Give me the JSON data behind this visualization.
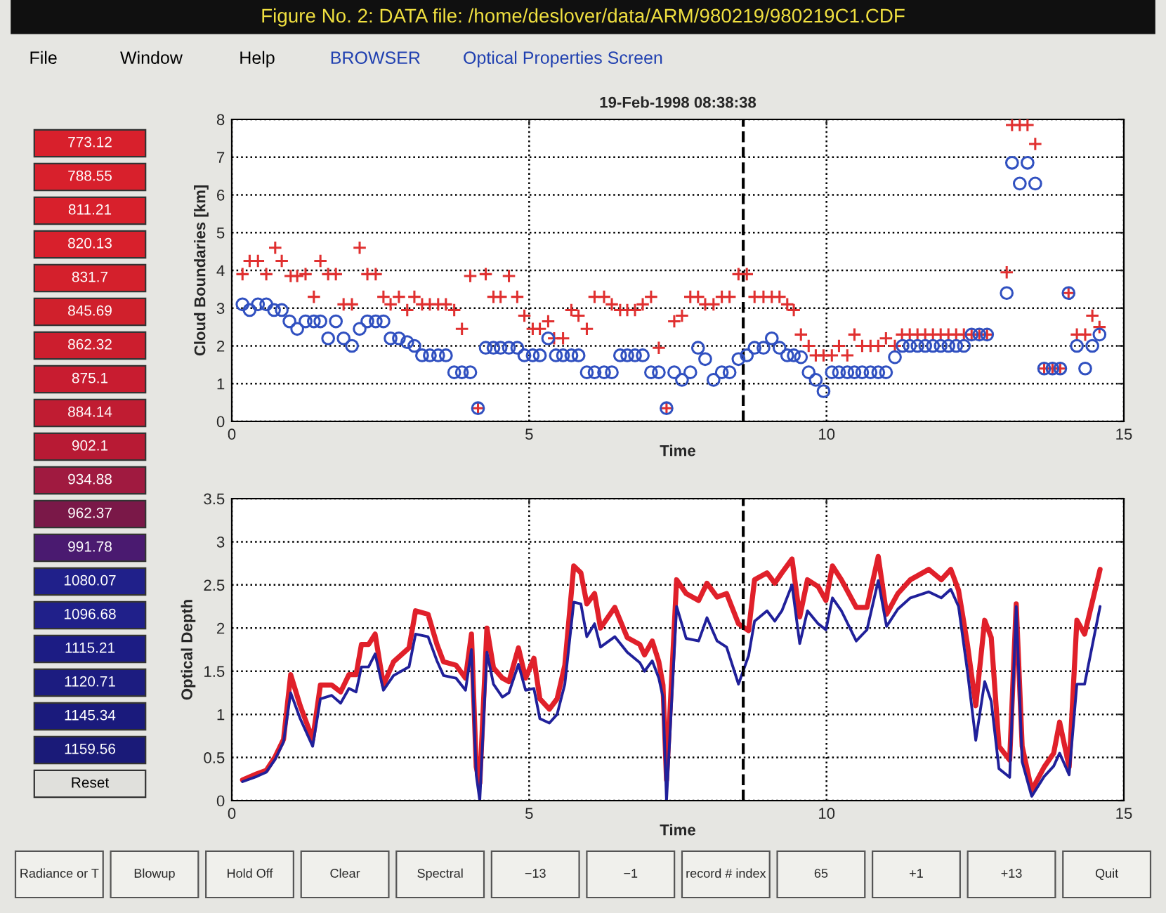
{
  "chart_data": [
    {
      "type": "other",
      "title": "Figure No. 2: DATA file: /home/deslover/data/ARM/980219/980219C1.CDF",
      "annotations": [
        "File",
        "Window",
        "Help",
        "BROWSER",
        "Optical Properties Screen"
      ]
    },
    {
      "type": "other",
      "annotations": [
        "773.12",
        "788.55",
        "811.21",
        "820.13",
        "831.7",
        "845.69",
        "862.32",
        "875.1",
        "884.14",
        "902.1",
        "934.88",
        "962.37",
        "991.78",
        "1080.07",
        "1096.68",
        "1115.21",
        "1120.71",
        "1145.34",
        "1159.56",
        "Reset"
      ],
      "colors": [
        "#d8202c",
        "#d8202c",
        "#d8202c",
        "#d8202c",
        "#d4202c",
        "#d0202c",
        "#cc1e2e",
        "#c81c30",
        "#c01c32",
        "#b81a34",
        "#a01a40",
        "#7a1848",
        "#4a1a70",
        "#20208a",
        "#20208a",
        "#1c1c84",
        "#1c1c80",
        "#1a1a7c",
        "#1a1a78",
        "#e0e0dc"
      ]
    },
    {
      "type": "scatter",
      "title": "19-Feb-1998 08:38:38",
      "xlabel": "Time",
      "ylabel": "Cloud Boundaries [km]",
      "xlim": [
        0,
        15
      ],
      "ylim": [
        0,
        8
      ],
      "xticks": [
        0,
        5,
        10,
        15
      ],
      "yticks": [
        0,
        1,
        2,
        3,
        4,
        5,
        6,
        7,
        8
      ],
      "grid": true,
      "ref_lines": [
        {
          "axis": "x",
          "value": 8.6,
          "line_style": "dashed",
          "color": "#000000"
        }
      ],
      "series": [
        {
          "color": "#e03030",
          "marker": "cross",
          "x": [
            0.18,
            0.3,
            0.44,
            0.58,
            0.73,
            0.84,
            0.99,
            1.1,
            1.24,
            1.38,
            1.49,
            1.62,
            1.75,
            1.88,
            2.02,
            2.15,
            2.28,
            2.42,
            2.55,
            2.67,
            2.81,
            2.95,
            3.07,
            3.2,
            3.33,
            3.47,
            3.6,
            3.74,
            3.87,
            4.01,
            4.14,
            4.27,
            4.4,
            4.52,
            4.66,
            4.8,
            4.92,
            5.06,
            5.18,
            5.32,
            5.42,
            5.57,
            5.71,
            5.83,
            5.97,
            6.1,
            6.26,
            6.39,
            6.53,
            6.65,
            6.78,
            6.91,
            7.05,
            7.18,
            7.31,
            7.44,
            7.57,
            7.71,
            7.84,
            7.96,
            8.1,
            8.24,
            8.37,
            8.52,
            8.66,
            8.79,
            8.94,
            9.08,
            9.21,
            9.34,
            9.45,
            9.57,
            9.7,
            9.82,
            9.95,
            10.09,
            10.21,
            10.35,
            10.47,
            10.6,
            10.74,
            10.87,
            11.0,
            11.15,
            11.27,
            11.4,
            11.53,
            11.66,
            11.79,
            11.92,
            12.05,
            12.18,
            12.31,
            12.44,
            12.57,
            12.7,
            13.03,
            13.12,
            13.25,
            13.38,
            13.51,
            13.66,
            13.8,
            13.93,
            14.07,
            14.21,
            14.35,
            14.47,
            14.59
          ],
          "values": [
            3.9,
            4.25,
            4.25,
            3.9,
            4.6,
            4.25,
            3.85,
            3.85,
            3.9,
            3.3,
            4.25,
            3.9,
            3.9,
            3.1,
            3.1,
            4.6,
            3.9,
            3.9,
            3.3,
            3.1,
            3.3,
            2.95,
            3.3,
            3.1,
            3.1,
            3.1,
            3.1,
            2.95,
            2.45,
            3.85,
            0.35,
            3.9,
            3.3,
            3.3,
            3.85,
            3.3,
            2.8,
            2.45,
            2.45,
            2.65,
            2.2,
            2.2,
            2.95,
            2.8,
            2.45,
            3.3,
            3.3,
            3.1,
            2.95,
            2.95,
            2.95,
            3.1,
            3.3,
            1.95,
            0.35,
            2.65,
            2.8,
            3.3,
            3.3,
            3.1,
            3.1,
            3.3,
            3.3,
            3.9,
            3.9,
            3.3,
            3.3,
            3.3,
            3.3,
            3.1,
            2.95,
            2.3,
            2.0,
            1.75,
            1.75,
            1.75,
            2.0,
            1.75,
            2.3,
            2.0,
            2.0,
            2.0,
            2.2,
            2.0,
            2.3,
            2.3,
            2.3,
            2.3,
            2.3,
            2.3,
            2.3,
            2.3,
            2.3,
            2.3,
            2.3,
            2.3,
            3.95,
            7.85,
            7.85,
            7.85,
            7.35,
            1.4,
            1.4,
            1.4,
            3.4,
            2.3,
            2.3,
            2.8,
            2.5
          ]
        },
        {
          "color": "#3050c0",
          "marker": "circle",
          "x": [
            0.18,
            0.3,
            0.44,
            0.58,
            0.71,
            0.84,
            0.97,
            1.1,
            1.24,
            1.38,
            1.49,
            1.62,
            1.75,
            1.88,
            2.02,
            2.15,
            2.28,
            2.42,
            2.55,
            2.67,
            2.81,
            2.95,
            3.07,
            3.2,
            3.33,
            3.47,
            3.6,
            3.74,
            3.87,
            4.01,
            4.14,
            4.27,
            4.4,
            4.52,
            4.66,
            4.8,
            4.92,
            5.06,
            5.18,
            5.32,
            5.45,
            5.57,
            5.71,
            5.83,
            5.97,
            6.1,
            6.26,
            6.39,
            6.53,
            6.65,
            6.78,
            6.91,
            7.05,
            7.18,
            7.31,
            7.44,
            7.57,
            7.71,
            7.84,
            7.96,
            8.1,
            8.24,
            8.37,
            8.52,
            8.66,
            8.79,
            8.94,
            9.08,
            9.21,
            9.34,
            9.45,
            9.57,
            9.7,
            9.82,
            9.95,
            10.09,
            10.21,
            10.35,
            10.47,
            10.6,
            10.74,
            10.87,
            11.0,
            11.15,
            11.28,
            11.4,
            11.53,
            11.66,
            11.79,
            11.92,
            12.05,
            12.18,
            12.31,
            12.44,
            12.57,
            12.7,
            13.03,
            13.12,
            13.25,
            13.38,
            13.51,
            13.66,
            13.8,
            13.93,
            14.07,
            14.21,
            14.35,
            14.47,
            14.59
          ],
          "values": [
            3.1,
            2.95,
            3.1,
            3.1,
            2.95,
            2.95,
            2.65,
            2.45,
            2.65,
            2.65,
            2.65,
            2.2,
            2.65,
            2.2,
            2.0,
            2.45,
            2.65,
            2.65,
            2.65,
            2.2,
            2.2,
            2.1,
            2.0,
            1.75,
            1.75,
            1.75,
            1.75,
            1.3,
            1.3,
            1.3,
            0.35,
            1.95,
            1.95,
            1.95,
            1.95,
            1.95,
            1.75,
            1.75,
            1.75,
            2.2,
            1.75,
            1.75,
            1.75,
            1.75,
            1.3,
            1.3,
            1.3,
            1.3,
            1.75,
            1.75,
            1.75,
            1.75,
            1.3,
            1.3,
            0.35,
            1.3,
            1.1,
            1.3,
            1.95,
            1.65,
            1.1,
            1.3,
            1.3,
            1.65,
            1.75,
            1.95,
            1.95,
            2.2,
            1.95,
            1.75,
            1.75,
            1.7,
            1.3,
            1.1,
            0.8,
            1.3,
            1.3,
            1.3,
            1.3,
            1.3,
            1.3,
            1.3,
            1.3,
            1.7,
            2.0,
            2.0,
            2.0,
            2.0,
            2.0,
            2.0,
            2.0,
            2.0,
            2.0,
            2.3,
            2.3,
            2.3,
            3.4,
            6.85,
            6.3,
            6.85,
            6.3,
            1.4,
            1.4,
            1.4,
            3.4,
            2.0,
            1.4,
            2.0,
            2.3
          ]
        }
      ]
    },
    {
      "type": "line",
      "xlabel": "Time",
      "ylabel": "Optical Depth",
      "xlim": [
        0,
        15
      ],
      "ylim": [
        0,
        3.5
      ],
      "xticks": [
        0,
        5,
        10,
        15
      ],
      "yticks": [
        0,
        0.5,
        1,
        1.5,
        2,
        2.5,
        3,
        3.5
      ],
      "grid": true,
      "ref_lines": [
        {
          "axis": "x",
          "value": 8.6,
          "line_style": "dashed",
          "color": "#000000"
        }
      ],
      "series": [
        {
          "color": "#e0202a",
          "x": [
            0.18,
            0.42,
            0.58,
            0.73,
            0.87,
            0.99,
            1.15,
            1.36,
            1.49,
            1.68,
            1.83,
            1.97,
            2.09,
            2.18,
            2.3,
            2.41,
            2.55,
            2.72,
            2.98,
            3.09,
            3.3,
            3.45,
            3.56,
            3.77,
            3.93,
            4.03,
            4.11,
            4.17,
            4.29,
            4.4,
            4.55,
            4.66,
            4.82,
            4.94,
            5.08,
            5.18,
            5.34,
            5.47,
            5.6,
            5.75,
            5.87,
            5.97,
            6.1,
            6.2,
            6.44,
            6.65,
            6.86,
            6.94,
            7.07,
            7.18,
            7.25,
            7.31,
            7.48,
            7.64,
            7.85,
            7.99,
            8.16,
            8.32,
            8.52,
            8.69,
            8.79,
            9.0,
            9.13,
            9.25,
            9.42,
            9.55,
            9.68,
            9.86,
            9.99,
            10.1,
            10.25,
            10.5,
            10.68,
            10.87,
            11.01,
            11.2,
            11.41,
            11.72,
            11.93,
            12.09,
            12.22,
            12.37,
            12.51,
            12.66,
            12.77,
            12.9,
            13.08,
            13.19,
            13.29,
            13.45,
            13.66,
            13.82,
            13.92,
            14.08,
            14.21,
            14.34,
            14.6
          ],
          "values": [
            0.24,
            0.31,
            0.35,
            0.51,
            0.71,
            1.46,
            1.1,
            0.71,
            1.34,
            1.34,
            1.26,
            1.46,
            1.46,
            1.81,
            1.81,
            1.93,
            1.34,
            1.61,
            1.77,
            2.2,
            2.16,
            1.81,
            1.61,
            1.57,
            1.42,
            1.93,
            0.39,
            0.2,
            2.0,
            1.54,
            1.42,
            1.38,
            1.77,
            1.42,
            1.65,
            1.18,
            1.06,
            1.18,
            1.57,
            2.72,
            2.64,
            2.28,
            2.4,
            2.0,
            2.24,
            1.89,
            1.81,
            1.69,
            1.85,
            1.61,
            1.34,
            0.24,
            2.56,
            2.4,
            2.32,
            2.52,
            2.36,
            2.4,
            2.05,
            1.97,
            2.56,
            2.64,
            2.52,
            2.64,
            2.8,
            2.13,
            2.56,
            2.48,
            2.32,
            2.72,
            2.56,
            2.24,
            2.24,
            2.83,
            2.16,
            2.4,
            2.56,
            2.68,
            2.56,
            2.68,
            2.44,
            1.81,
            1.1,
            2.09,
            1.89,
            0.63,
            0.47,
            2.28,
            0.63,
            0.12,
            0.39,
            0.55,
            0.91,
            0.39,
            2.09,
            1.93,
            2.68
          ]
        },
        {
          "color": "#20209a",
          "x": [
            0.18,
            0.42,
            0.58,
            0.73,
            0.87,
            0.99,
            1.15,
            1.36,
            1.49,
            1.68,
            1.83,
            1.97,
            2.09,
            2.18,
            2.3,
            2.41,
            2.55,
            2.72,
            2.98,
            3.09,
            3.3,
            3.45,
            3.56,
            3.77,
            3.93,
            4.03,
            4.11,
            4.17,
            4.29,
            4.4,
            4.55,
            4.66,
            4.82,
            4.94,
            5.08,
            5.18,
            5.34,
            5.47,
            5.6,
            5.75,
            5.87,
            5.97,
            6.1,
            6.2,
            6.44,
            6.65,
            6.86,
            6.94,
            7.07,
            7.18,
            7.25,
            7.31,
            7.48,
            7.64,
            7.85,
            7.99,
            8.16,
            8.32,
            8.52,
            8.69,
            8.79,
            9.0,
            9.13,
            9.25,
            9.42,
            9.55,
            9.68,
            9.86,
            9.99,
            10.1,
            10.25,
            10.5,
            10.68,
            10.87,
            11.01,
            11.2,
            11.41,
            11.72,
            11.93,
            12.09,
            12.22,
            12.37,
            12.51,
            12.66,
            12.77,
            12.9,
            13.08,
            13.19,
            13.29,
            13.45,
            13.66,
            13.82,
            13.92,
            14.08,
            14.21,
            14.34,
            14.6
          ],
          "values": [
            0.22,
            0.28,
            0.33,
            0.48,
            0.68,
            1.25,
            0.95,
            0.63,
            1.18,
            1.22,
            1.13,
            1.3,
            1.26,
            1.55,
            1.55,
            1.7,
            1.28,
            1.45,
            1.55,
            1.93,
            1.9,
            1.62,
            1.45,
            1.42,
            1.28,
            1.75,
            0.3,
            0,
            1.72,
            1.35,
            1.2,
            1.25,
            1.58,
            1.28,
            1.3,
            0.95,
            0.9,
            1.0,
            1.35,
            2.3,
            2.28,
            1.9,
            2.05,
            1.78,
            1.9,
            1.72,
            1.6,
            1.5,
            1.62,
            1.42,
            1.2,
            0,
            2.25,
            1.88,
            1.85,
            2.12,
            1.85,
            1.78,
            1.35,
            1.68,
            2.08,
            2.2,
            2.08,
            2.2,
            2.5,
            1.82,
            2.2,
            2.05,
            1.98,
            2.35,
            2.2,
            1.85,
            1.98,
            2.55,
            2.02,
            2.22,
            2.35,
            2.42,
            2.35,
            2.45,
            2.25,
            1.5,
            0.7,
            1.38,
            1.15,
            0.37,
            0.27,
            2.25,
            0.45,
            0.05,
            0.28,
            0.4,
            0.55,
            0.3,
            1.35,
            1.35,
            2.25
          ]
        }
      ]
    },
    {
      "type": "other",
      "annotations": [
        "Radiance or T",
        "Blowup",
        "Hold Off",
        "Clear",
        "Spectral",
        "−13",
        "−1",
        "record # index",
        "65",
        "+1",
        "+13",
        "Quit"
      ]
    }
  ]
}
